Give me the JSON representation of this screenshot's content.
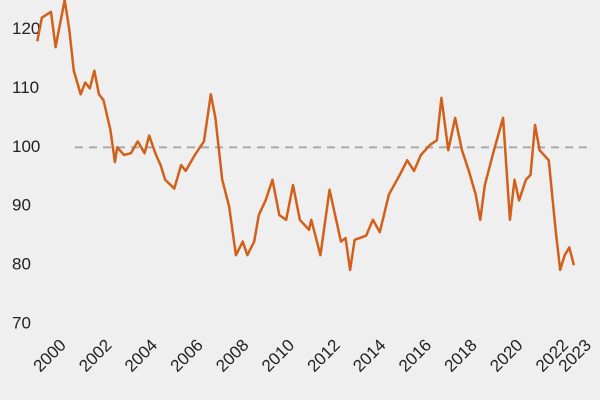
{
  "chart_data": {
    "type": "line",
    "x": [
      1999.1,
      1999.3,
      1999.7,
      1999.9,
      2000.3,
      2000.5,
      2000.7,
      2001.0,
      2001.2,
      2001.4,
      2001.6,
      2001.8,
      2002.0,
      2002.3,
      2002.5,
      2002.6,
      2002.9,
      2003.2,
      2003.5,
      2003.8,
      2004.0,
      2004.3,
      2004.5,
      2004.7,
      2005.1,
      2005.4,
      2005.6,
      2006.0,
      2006.4,
      2006.7,
      2006.9,
      2007.2,
      2007.5,
      2007.8,
      2008.1,
      2008.3,
      2008.6,
      2008.8,
      2009.1,
      2009.4,
      2009.7,
      2010.0,
      2010.3,
      2010.6,
      2011.0,
      2011.1,
      2011.5,
      2011.9,
      2012.4,
      2012.6,
      2012.8,
      2013.0,
      2013.5,
      2013.8,
      2014.1,
      2014.5,
      2015.0,
      2015.3,
      2015.6,
      2015.9,
      2016.3,
      2016.6,
      2016.8,
      2017.1,
      2017.4,
      2017.7,
      2018.0,
      2018.3,
      2018.5,
      2018.7,
      2019.1,
      2019.5,
      2019.8,
      2020.0,
      2020.2,
      2020.5,
      2020.7,
      2020.9,
      2021.1,
      2021.5,
      2021.8,
      2022.0,
      2022.2,
      2022.4,
      2022.6
    ],
    "values": [
      118,
      122,
      123,
      117,
      125,
      120,
      113,
      109,
      111,
      110,
      113,
      109,
      108,
      103,
      97.5,
      100,
      98.7,
      99,
      101,
      99,
      102,
      98.7,
      97,
      94.5,
      93,
      97,
      96,
      98.7,
      101,
      109,
      105,
      94.5,
      90,
      81.7,
      84,
      81.7,
      84,
      88.5,
      91,
      94.5,
      88.5,
      87.7,
      93.6,
      87.7,
      86,
      87.7,
      81.7,
      92.8,
      84,
      84.6,
      79.2,
      84.3,
      85,
      87.7,
      85.6,
      92,
      95.5,
      97.8,
      96,
      98.7,
      100.4,
      101.2,
      108.4,
      99.5,
      105,
      99.5,
      96,
      92,
      87.7,
      93.6,
      99.5,
      105,
      87.7,
      94.5,
      91,
      94.5,
      95.3,
      103.8,
      99.5,
      97.8,
      86,
      79.2,
      81.7,
      83,
      80
    ],
    "color": "#d2601a",
    "reference": 100,
    "xlim": [
      1999,
      2023
    ],
    "xticks": [
      2000,
      2002,
      2004,
      2006,
      2008,
      2010,
      2012,
      2014,
      2016,
      2018,
      2020,
      2022,
      2023
    ],
    "ylim": [
      69,
      125
    ],
    "yticks": [
      70,
      80,
      90,
      100,
      110,
      120
    ]
  }
}
